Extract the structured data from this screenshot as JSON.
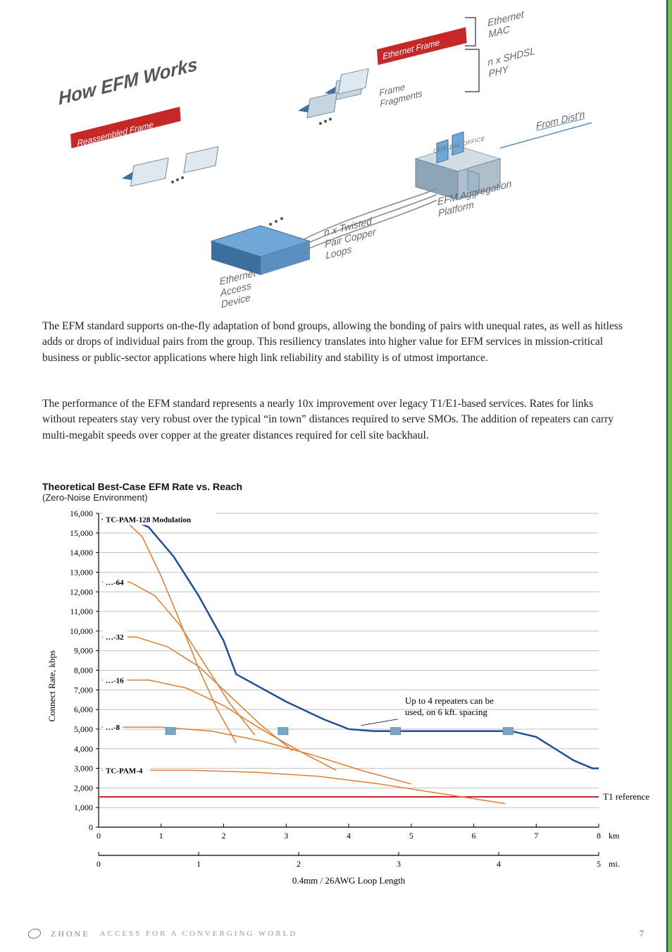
{
  "diagram": {
    "title": "How EFM Works",
    "labels": {
      "ethernet_mac": "Ethernet\nMAC",
      "nxshdsl": "n x SHDSL\nPHY",
      "ethernet_frame": "Ethernet Frame",
      "frame_fragments": "Frame\nFragments",
      "reassembled": "Reassembled Frame",
      "from_distn": "From Dist'n",
      "central_office": "CENTRAL OFFICE",
      "efm_agg": "EFM Aggregation\nPlatform",
      "twisted_pair": "n x Twisted\nPair Copper\nLoops",
      "ethernet_access": "Ethernet\nAccess\nDevice"
    },
    "colors": {
      "title": "#555555",
      "label": "#666666",
      "frame_badge_bg": "#c62828",
      "frame_badge_text": "#ffffff",
      "underline": "#5b8fbf",
      "bracket": "#555555",
      "iso_top": "#c8d4df",
      "iso_left": "#8ea5b8",
      "iso_right": "#6f8aa0",
      "device_top": "#6fa8d6",
      "device_side": "#3d6f9e"
    }
  },
  "paragraphs": {
    "p1": "The EFM standard supports on-the-fly adaptation of bond groups, allowing the bonding of pairs with unequal rates, as well as hitless adds or drops of individual pairs from the group.  This resiliency translates into higher value for EFM services in mission-critical business or public-sector applications where high link reliability and stability is of utmost importance.",
    "p2": "The performance of the EFM standard represents a nearly 10x improvement over legacy T1/E1-based services.  Rates for links without repeaters stay very robust over the typical “in town” distances required to serve SMOs.  The addition of repeaters can carry multi-megabit speeds over copper at the greater distances required for cell site backhaul."
  },
  "chart": {
    "type": "line",
    "title": "Theoretical Best-Case EFM Rate vs. Reach",
    "subtitle": "(Zero-Noise Environment)",
    "ylabel": "Connect Rate, kbps",
    "xlabel": "0.4mm / 26AWG Loop Length",
    "x_unit_top": "km",
    "x_unit_bottom": "mi.",
    "ylim": [
      0,
      16000
    ],
    "ytick_step": 1000,
    "yticks": [
      "0",
      "1,000",
      "2,000",
      "3,000",
      "4,000",
      "5,000",
      "6,000",
      "7,000",
      "8,000",
      "9,000",
      "10,000",
      "11,000",
      "12,000",
      "13,000",
      "14,000",
      "15,000",
      "16,000"
    ],
    "x_km": {
      "min": 0,
      "max": 8,
      "ticks": [
        0,
        1,
        2,
        3,
        4,
        5,
        6,
        7,
        8
      ]
    },
    "x_mi": {
      "min": 0,
      "max": 5,
      "ticks": [
        0,
        1,
        2,
        3,
        4,
        5
      ]
    },
    "t1_reference": {
      "label": "T1 reference",
      "y": 1544,
      "color": "#c62828",
      "width": 2
    },
    "repeater_note": "Up to 4 repeaters can be\nused, on 6 kft. spacing",
    "repeater_markers_x_km": [
      1.15,
      2.95,
      4.75,
      6.55
    ],
    "repeater_marker_y": 4900,
    "series_labels": {
      "pam128": "TC-PAM-128 Modulation",
      "pam64": "…-64",
      "pam32": "…-32",
      "pam16": "…-16",
      "pam8": "…-8",
      "pam4": "TC-PAM-4"
    },
    "series": {
      "pam128": [
        [
          0.05,
          15700
        ],
        [
          0.4,
          15700
        ],
        [
          0.7,
          14800
        ],
        [
          1.0,
          12800
        ],
        [
          1.3,
          10500
        ],
        [
          1.6,
          8100
        ],
        [
          1.9,
          6000
        ],
        [
          2.2,
          4300
        ]
      ],
      "pam64": [
        [
          0.05,
          12500
        ],
        [
          0.5,
          12500
        ],
        [
          0.9,
          11800
        ],
        [
          1.3,
          10300
        ],
        [
          1.7,
          8300
        ],
        [
          2.1,
          6300
        ],
        [
          2.5,
          4700
        ]
      ],
      "pam32": [
        [
          0.05,
          9700
        ],
        [
          0.6,
          9700
        ],
        [
          1.1,
          9200
        ],
        [
          1.6,
          8200
        ],
        [
          2.1,
          6700
        ],
        [
          2.6,
          5200
        ],
        [
          3.1,
          3900
        ]
      ],
      "pam16": [
        [
          0.05,
          7500
        ],
        [
          0.8,
          7500
        ],
        [
          1.4,
          7100
        ],
        [
          2.0,
          6200
        ],
        [
          2.6,
          5000
        ],
        [
          3.2,
          3900
        ],
        [
          3.8,
          2900
        ]
      ],
      "pam8": [
        [
          0.05,
          5100
        ],
        [
          1.0,
          5100
        ],
        [
          1.8,
          4900
        ],
        [
          2.6,
          4400
        ],
        [
          3.4,
          3700
        ],
        [
          4.2,
          2900
        ],
        [
          5.0,
          2200
        ]
      ],
      "pam4": [
        [
          0.05,
          2900
        ],
        [
          1.5,
          2900
        ],
        [
          2.5,
          2800
        ],
        [
          3.5,
          2600
        ],
        [
          4.5,
          2200
        ],
        [
          5.5,
          1700
        ],
        [
          6.5,
          1200
        ]
      ]
    },
    "envelope": [
      [
        0.05,
        15700
      ],
      [
        0.5,
        15700
      ],
      [
        0.8,
        15300
      ],
      [
        1.2,
        13800
      ],
      [
        1.6,
        11800
      ],
      [
        2.0,
        9500
      ],
      [
        2.2,
        7800
      ],
      [
        3.0,
        6400
      ],
      [
        3.6,
        5500
      ],
      [
        4.0,
        5000
      ],
      [
        4.4,
        4900
      ],
      [
        6.6,
        4900
      ],
      [
        7.0,
        4600
      ],
      [
        7.3,
        4000
      ],
      [
        7.6,
        3400
      ],
      [
        7.9,
        3000
      ],
      [
        8.0,
        3000
      ]
    ],
    "colors": {
      "grid": "#bfbfbf",
      "axis": "#000000",
      "series": "#e07b2e",
      "envelope": "#1f4e9c",
      "repeater_box": "#7aa6c2",
      "text": "#000000",
      "tick_text": "#000000",
      "label_bg": "#ffffff"
    },
    "line_width": 1.5,
    "envelope_width": 2.5,
    "font_sizes": {
      "title": 14,
      "subtitle": 13,
      "axis_label": 13,
      "tick": 12,
      "series_label": 11,
      "note": 13
    }
  },
  "footer": {
    "brand": "ZHONE",
    "tagline": "ACCESS FOR A CONVERGING WORLD",
    "page": "7"
  }
}
